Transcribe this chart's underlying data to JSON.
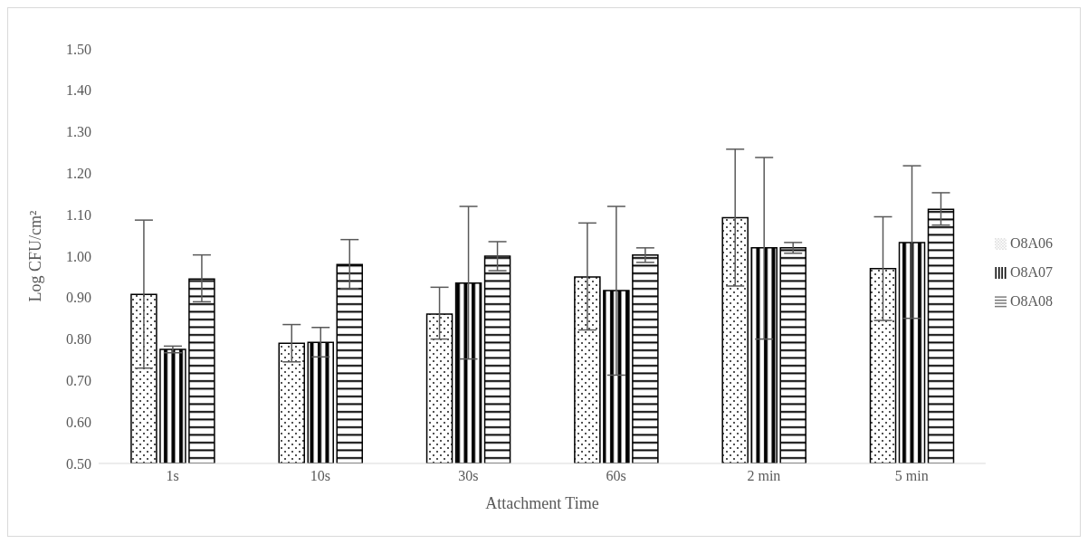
{
  "chart_data": {
    "type": "bar",
    "xlabel": "Attachment Time",
    "ylabel": "Log CFU/cm²",
    "categories": [
      "1s",
      "10s",
      "30s",
      "60s",
      "2 min",
      "5 min"
    ],
    "series": [
      {
        "name": "O8A06",
        "color": "#000000",
        "values": [
          0.908,
          0.79,
          0.86,
          0.95,
          1.093,
          0.97
        ],
        "errors": [
          [
            0.73,
            1.087
          ],
          [
            0.745,
            0.835
          ],
          [
            0.8,
            0.925
          ],
          [
            0.822,
            1.08
          ],
          [
            0.928,
            1.258
          ],
          [
            0.845,
            1.095
          ]
        ]
      },
      {
        "name": "O8A07",
        "color": "#000000",
        "values": [
          0.775,
          0.792,
          0.935,
          0.917,
          1.02,
          1.033
        ],
        "errors": [
          [
            0.767,
            0.783
          ],
          [
            0.757,
            0.828
          ],
          [
            0.752,
            1.12
          ],
          [
            0.713,
            1.12
          ],
          [
            0.8,
            1.238
          ],
          [
            0.85,
            1.218
          ]
        ]
      },
      {
        "name": "O8A08",
        "color": "#000000",
        "values": [
          0.945,
          0.98,
          1.0,
          1.003,
          1.02,
          1.113
        ],
        "errors": [
          [
            0.89,
            1.003
          ],
          [
            0.922,
            1.04
          ],
          [
            0.965,
            1.035
          ],
          [
            0.985,
            1.02
          ],
          [
            1.007,
            1.033
          ],
          [
            1.075,
            1.153
          ]
        ]
      }
    ],
    "ylim": [
      0.5,
      1.5
    ],
    "yticks": [
      {
        "value": 0.5,
        "label": "0.50"
      },
      {
        "value": 0.6,
        "label": "0.60"
      },
      {
        "value": 0.7,
        "label": "0.70"
      },
      {
        "value": 0.8,
        "label": "0.80"
      },
      {
        "value": 0.9,
        "label": "0.90"
      },
      {
        "value": 1.0,
        "label": "1.00"
      },
      {
        "value": 1.1,
        "label": "1.10"
      },
      {
        "value": 1.2,
        "label": "1.20"
      },
      {
        "value": 1.3,
        "label": "1.30"
      },
      {
        "value": 1.4,
        "label": "1.40"
      },
      {
        "value": 1.5,
        "label": "1.50"
      }
    ],
    "grid": false,
    "legend": "right"
  }
}
